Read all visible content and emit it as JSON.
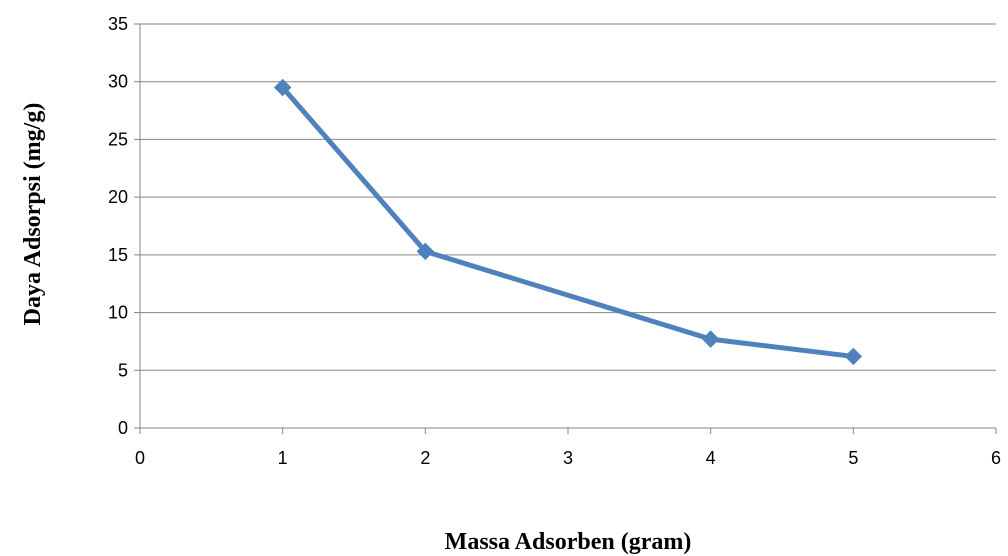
{
  "chart_data": {
    "type": "scatter",
    "title": "",
    "xlabel": "Massa Adsorben (gram)",
    "ylabel": "Daya Adsorpsi (mg/g)",
    "xlim": [
      0,
      6
    ],
    "ylim": [
      0,
      35
    ],
    "x_ticks": [
      0,
      1,
      2,
      3,
      4,
      5,
      6
    ],
    "y_ticks": [
      0,
      5,
      10,
      15,
      20,
      25,
      30,
      35
    ],
    "grid": "horizontal",
    "legend": "none",
    "series": [
      {
        "x": [
          1,
          2,
          4,
          5
        ],
        "y": [
          29.5,
          15.3,
          7.7,
          6.2
        ],
        "color": "#4F81BD",
        "marker": "diamond",
        "line": "straight"
      }
    ]
  }
}
